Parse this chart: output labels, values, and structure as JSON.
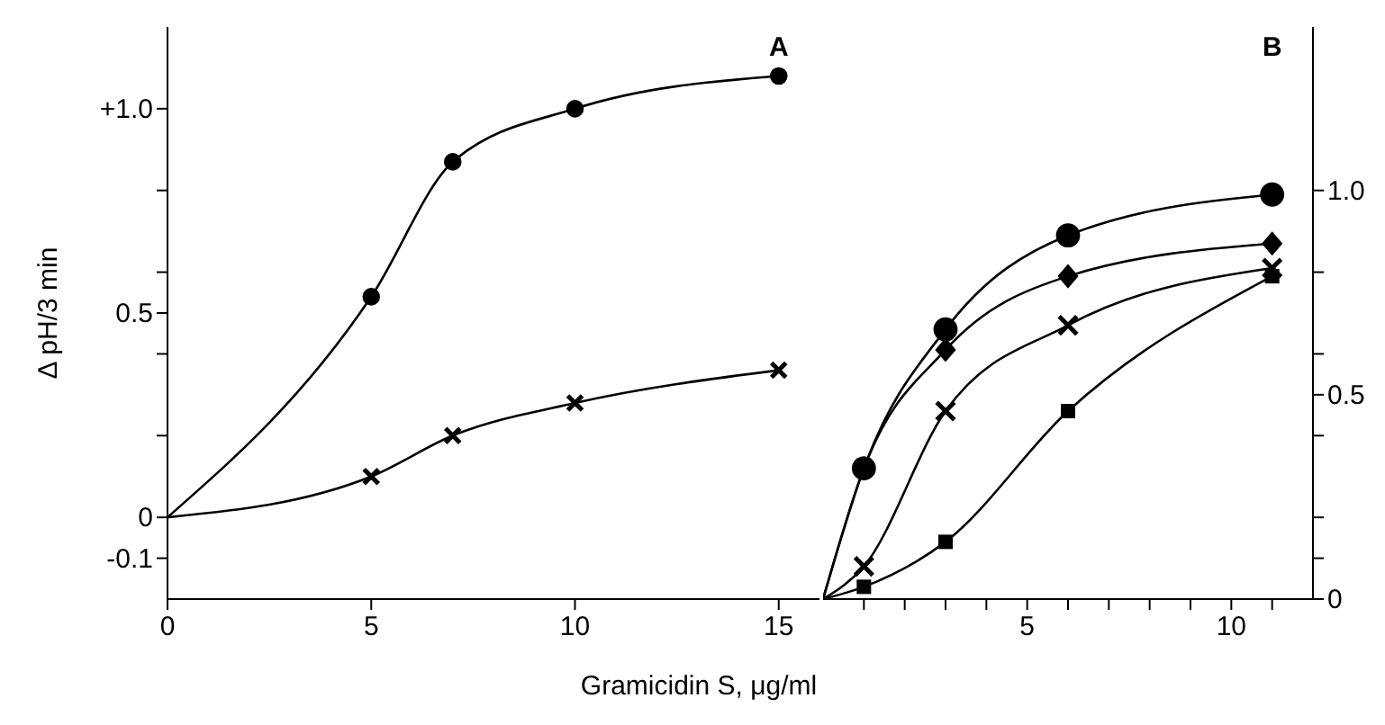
{
  "chart_data": [
    {
      "type": "line",
      "title": "A",
      "xlabel": "Gramicidin S, μg/ml",
      "ylabel": "Δ pH/3 min",
      "xlim": [
        0,
        16
      ],
      "xticks": [
        {
          "value": 0,
          "label": "0"
        },
        5,
        10,
        15
      ],
      "ylim": [
        -0.2,
        1.2
      ],
      "yticks": [
        {
          "value": -0.1,
          "label": "-0.1"
        },
        {
          "value": 0,
          "label": "0"
        },
        {
          "value": 0.2,
          "label": null
        },
        {
          "value": 0.4,
          "label": null
        },
        0.5,
        {
          "value": 0.6,
          "label": null
        },
        {
          "value": 0.8,
          "label": null
        },
        {
          "value": 1.0,
          "label": "+1.0"
        }
      ],
      "series": [
        {
          "color": "#000000",
          "marker": "circle",
          "x": [
            0,
            5,
            7,
            10,
            15
          ],
          "values": [
            0,
            0.54,
            0.87,
            1.0,
            1.08
          ]
        },
        {
          "color": "#000000",
          "marker": "cross",
          "x": [
            0,
            5,
            7,
            10,
            15
          ],
          "values": [
            0,
            0.1,
            0.2,
            0.28,
            0.36
          ]
        }
      ]
    },
    {
      "type": "line",
      "title": "B",
      "xlim": [
        0,
        12
      ],
      "xticks": [
        {
          "value": 1,
          "label": null
        },
        {
          "value": 2,
          "label": null
        },
        {
          "value": 3,
          "label": null
        },
        {
          "value": 4,
          "label": null
        },
        5,
        {
          "value": 6,
          "label": null
        },
        {
          "value": 7,
          "label": null
        },
        {
          "value": 8,
          "label": null
        },
        {
          "value": 9,
          "label": null
        },
        10,
        {
          "value": 11,
          "label": null
        }
      ],
      "ylim": [
        0,
        1.4
      ],
      "yticks": [
        {
          "value": 0,
          "label": "0"
        },
        {
          "value": 0.1,
          "label": null
        },
        {
          "value": 0.2,
          "label": null
        },
        {
          "value": 0.4,
          "label": null
        },
        0.5,
        {
          "value": 0.6,
          "label": null
        },
        {
          "value": 0.8,
          "label": null
        },
        {
          "value": 1.0,
          "label": "1.0"
        }
      ],
      "series": [
        {
          "color": "#000000",
          "marker": "circle",
          "x": [
            0,
            1,
            3,
            6,
            11
          ],
          "values": [
            0,
            0.32,
            0.66,
            0.89,
            0.99
          ]
        },
        {
          "color": "#000000",
          "marker": "diamond",
          "x": [
            0,
            1,
            3,
            6,
            11
          ],
          "values": [
            0,
            0.32,
            0.61,
            0.79,
            0.87
          ]
        },
        {
          "color": "#000000",
          "marker": "cross",
          "x": [
            0,
            1,
            3,
            6,
            11
          ],
          "values": [
            0,
            0.08,
            0.46,
            0.67,
            0.81
          ]
        },
        {
          "color": "#000000",
          "marker": "square",
          "x": [
            0,
            1,
            3,
            6,
            11
          ],
          "values": [
            0,
            0.03,
            0.14,
            0.46,
            0.79
          ]
        }
      ]
    }
  ]
}
